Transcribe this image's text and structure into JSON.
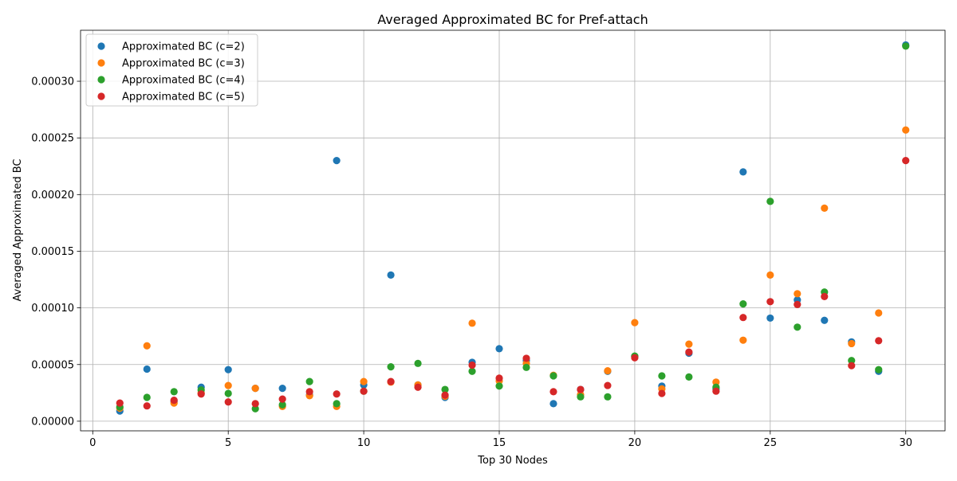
{
  "chart_data": {
    "type": "scatter",
    "title": "Averaged Approximated BC for Pref-attach",
    "xlabel": "Top 30 Nodes",
    "ylabel": "Averaged Approximated BC",
    "xlim": [
      -0.45,
      31.45
    ],
    "ylim": [
      -8.5e-06,
      0.000345
    ],
    "xticks": [
      0,
      5,
      10,
      15,
      20,
      25,
      30
    ],
    "xtick_labels": [
      "0",
      "5",
      "10",
      "15",
      "20",
      "25",
      "30"
    ],
    "yticks": [
      0,
      5e-05,
      0.0001,
      0.00015,
      0.0002,
      0.00025,
      0.0003
    ],
    "ytick_labels": [
      "0.00000",
      "0.00005",
      "0.00010",
      "0.00015",
      "0.00020",
      "0.00025",
      "0.00030"
    ],
    "grid": true,
    "legend_position": "top-left",
    "x": [
      1,
      2,
      3,
      4,
      5,
      6,
      7,
      8,
      9,
      10,
      11,
      12,
      13,
      14,
      15,
      16,
      17,
      18,
      19,
      20,
      21,
      22,
      23,
      24,
      25,
      26,
      27,
      28,
      29,
      30
    ],
    "series": [
      {
        "name": "Approximated BC (c=2)",
        "color": "#1f77b4",
        "values": [
          9e-06,
          4.6e-05,
          1.75e-05,
          3e-05,
          4.55e-05,
          2.9e-05,
          2.9e-05,
          2.3e-05,
          0.00023,
          3.2e-05,
          0.000129,
          3.2e-05,
          2.1e-05,
          5.2e-05,
          6.4e-05,
          5.35e-05,
          1.55e-05,
          2.8e-05,
          4.4e-05,
          5.7e-05,
          3.1e-05,
          6e-05,
          2.85e-05,
          0.00022,
          9.1e-05,
          0.000107,
          8.9e-05,
          7e-05,
          4.4e-05,
          0.000332
        ]
      },
      {
        "name": "Approximated BC (c=3)",
        "color": "#ff7f0e",
        "values": [
          1.15e-05,
          6.65e-05,
          1.6e-05,
          2.5e-05,
          3.15e-05,
          2.9e-05,
          1.3e-05,
          2.25e-05,
          1.3e-05,
          3.5e-05,
          3.45e-05,
          3.2e-05,
          2.2e-05,
          8.65e-05,
          3.55e-05,
          5.1e-05,
          4.05e-05,
          2.35e-05,
          4.45e-05,
          8.7e-05,
          2.85e-05,
          6.8e-05,
          3.45e-05,
          7.15e-05,
          0.000129,
          0.0001125,
          0.000188,
          6.85e-05,
          9.55e-05,
          0.000257
        ]
      },
      {
        "name": "Approximated BC (c=4)",
        "color": "#2ca02c",
        "values": [
          1.25e-05,
          2.1e-05,
          2.6e-05,
          2.75e-05,
          2.45e-05,
          1.1e-05,
          1.45e-05,
          3.5e-05,
          1.55e-05,
          2.65e-05,
          4.8e-05,
          5.1e-05,
          2.8e-05,
          4.4e-05,
          3.1e-05,
          4.75e-05,
          4e-05,
          2.15e-05,
          2.15e-05,
          5.75e-05,
          4e-05,
          3.9e-05,
          3e-05,
          0.0001035,
          0.000194,
          8.3e-05,
          0.000114,
          5.35e-05,
          4.55e-05,
          0.000331
        ]
      },
      {
        "name": "Approximated BC (c=5)",
        "color": "#d62728",
        "values": [
          1.6e-05,
          1.35e-05,
          1.85e-05,
          2.4e-05,
          1.7e-05,
          1.55e-05,
          1.95e-05,
          2.6e-05,
          2.4e-05,
          2.65e-05,
          3.5e-05,
          3e-05,
          2.3e-05,
          4.95e-05,
          3.8e-05,
          5.55e-05,
          2.6e-05,
          2.8e-05,
          3.15e-05,
          5.6e-05,
          2.45e-05,
          6.1e-05,
          2.65e-05,
          9.15e-05,
          0.0001055,
          0.000103,
          0.00011,
          4.9e-05,
          7.1e-05,
          0.00023
        ]
      }
    ]
  }
}
